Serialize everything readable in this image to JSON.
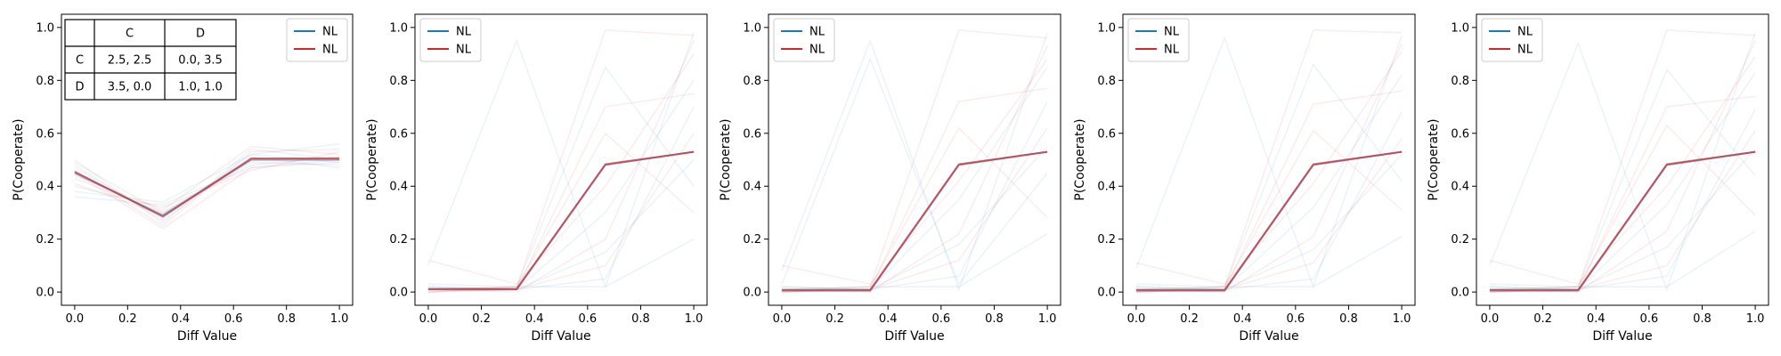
{
  "chart_data": [
    {
      "type": "line",
      "xlabel": "Diff Value",
      "ylabel": "P(Cooperate)",
      "xlim": [
        -0.05,
        1.05
      ],
      "ylim": [
        -0.05,
        1.05
      ],
      "x_ticks": [
        "0.0",
        "0.2",
        "0.4",
        "0.6",
        "0.8",
        "1.0"
      ],
      "y_ticks": [
        "0.0",
        "0.2",
        "0.4",
        "0.6",
        "0.8",
        "1.0"
      ],
      "legend": {
        "placement": "top-right",
        "entries": [
          {
            "label": "NL",
            "color": "#1f77b4"
          },
          {
            "label": "NL",
            "color": "#d62728"
          }
        ]
      },
      "payoff_table": {
        "col_headers": [
          "",
          "C",
          "D"
        ],
        "rows": [
          [
            "C",
            "2.5, 2.5",
            "0.0, 3.5"
          ],
          [
            "D",
            "3.5, 0.0",
            "1.0, 1.0"
          ]
        ]
      },
      "x": [
        0.0,
        0.333,
        0.667,
        1.0
      ],
      "series": [
        {
          "color": "#1f77b4",
          "values": [
            0.45,
            0.29,
            0.5,
            0.5
          ]
        },
        {
          "color": "#d62728",
          "values": [
            0.455,
            0.285,
            0.505,
            0.505
          ]
        }
      ],
      "background_traces": [
        [
          0.47,
          0.28,
          0.52,
          0.49
        ],
        [
          0.43,
          0.3,
          0.48,
          0.51
        ],
        [
          0.5,
          0.26,
          0.54,
          0.5
        ],
        [
          0.4,
          0.32,
          0.46,
          0.53
        ],
        [
          0.48,
          0.27,
          0.51,
          0.47
        ],
        [
          0.44,
          0.31,
          0.55,
          0.52
        ],
        [
          0.36,
          0.33,
          0.47,
          0.5
        ],
        [
          0.46,
          0.25,
          0.53,
          0.54
        ],
        [
          0.41,
          0.29,
          0.49,
          0.48
        ],
        [
          0.49,
          0.3,
          0.5,
          0.51
        ],
        [
          0.38,
          0.34,
          0.52,
          0.56
        ],
        [
          0.45,
          0.24,
          0.47,
          0.49
        ]
      ]
    },
    {
      "type": "line",
      "xlabel": "Diff Value",
      "ylabel": "P(Cooperate)",
      "xlim": [
        -0.05,
        1.05
      ],
      "ylim": [
        -0.05,
        1.05
      ],
      "x_ticks": [
        "0.0",
        "0.2",
        "0.4",
        "0.6",
        "0.8",
        "1.0"
      ],
      "y_ticks": [
        "0.0",
        "0.2",
        "0.4",
        "0.6",
        "0.8",
        "1.0"
      ],
      "legend": {
        "placement": "top-left",
        "entries": [
          {
            "label": "NL",
            "color": "#1f77b4"
          },
          {
            "label": "NL",
            "color": "#d62728"
          }
        ]
      },
      "x": [
        0.0,
        0.333,
        0.667,
        1.0
      ],
      "series": [
        {
          "color": "#1f77b4",
          "values": [
            0.01,
            0.01,
            0.48,
            0.53
          ]
        },
        {
          "color": "#d62728",
          "values": [
            0.012,
            0.012,
            0.483,
            0.53
          ]
        }
      ],
      "background_traces": [
        [
          0.1,
          0.95,
          0.02,
          0.98
        ],
        [
          0.01,
          0.02,
          0.99,
          0.97
        ],
        [
          0.02,
          0.01,
          0.3,
          0.8
        ],
        [
          0.0,
          0.01,
          0.1,
          0.6
        ],
        [
          0.03,
          0.02,
          0.85,
          0.4
        ],
        [
          0.01,
          0.0,
          0.2,
          0.95
        ],
        [
          0.02,
          0.01,
          0.05,
          0.7
        ],
        [
          0.0,
          0.02,
          0.6,
          0.3
        ],
        [
          0.01,
          0.01,
          0.15,
          0.5
        ],
        [
          0.12,
          0.03,
          0.4,
          0.9
        ],
        [
          0.01,
          0.02,
          0.02,
          0.2
        ],
        [
          0.0,
          0.01,
          0.7,
          0.75
        ]
      ]
    },
    {
      "type": "line",
      "xlabel": "Diff Value",
      "ylabel": "P(Cooperate)",
      "xlim": [
        -0.05,
        1.05
      ],
      "ylim": [
        -0.05,
        1.05
      ],
      "x_ticks": [
        "0.0",
        "0.2",
        "0.4",
        "0.6",
        "0.8",
        "1.0"
      ],
      "y_ticks": [
        "0.0",
        "0.2",
        "0.4",
        "0.6",
        "0.8",
        "1.0"
      ],
      "legend": {
        "placement": "top-left",
        "entries": [
          {
            "label": "NL",
            "color": "#1f77b4"
          },
          {
            "label": "NL",
            "color": "#d62728"
          }
        ]
      },
      "x": [
        0.0,
        0.333,
        0.667,
        1.0
      ],
      "series": [
        {
          "color": "#1f77b4",
          "values": [
            0.005,
            0.005,
            0.48,
            0.53
          ]
        },
        {
          "color": "#d62728",
          "values": [
            0.008,
            0.008,
            0.483,
            0.53
          ]
        }
      ],
      "background_traces": [
        [
          0.08,
          0.95,
          0.01,
          0.98
        ],
        [
          0.01,
          0.02,
          0.99,
          0.96
        ],
        [
          0.02,
          0.01,
          0.35,
          0.85
        ],
        [
          0.0,
          0.01,
          0.12,
          0.62
        ],
        [
          0.03,
          0.88,
          0.03,
          0.45
        ],
        [
          0.01,
          0.0,
          0.22,
          0.93
        ],
        [
          0.02,
          0.01,
          0.06,
          0.72
        ],
        [
          0.0,
          0.02,
          0.62,
          0.28
        ],
        [
          0.01,
          0.01,
          0.18,
          0.55
        ],
        [
          0.1,
          0.03,
          0.42,
          0.88
        ],
        [
          0.01,
          0.02,
          0.02,
          0.22
        ],
        [
          0.0,
          0.01,
          0.72,
          0.77
        ]
      ]
    },
    {
      "type": "line",
      "xlabel": "Diff Value",
      "ylabel": "P(Cooperate)",
      "xlim": [
        -0.05,
        1.05
      ],
      "ylim": [
        -0.05,
        1.05
      ],
      "x_ticks": [
        "0.0",
        "0.2",
        "0.4",
        "0.6",
        "0.8",
        "1.0"
      ],
      "y_ticks": [
        "0.0",
        "0.2",
        "0.4",
        "0.6",
        "0.8",
        "1.0"
      ],
      "legend": {
        "placement": "top-left",
        "entries": [
          {
            "label": "NL",
            "color": "#1f77b4"
          },
          {
            "label": "NL",
            "color": "#d62728"
          }
        ]
      },
      "x": [
        0.0,
        0.333,
        0.667,
        1.0
      ],
      "series": [
        {
          "color": "#1f77b4",
          "values": [
            0.005,
            0.005,
            0.48,
            0.53
          ]
        },
        {
          "color": "#d62728",
          "values": [
            0.008,
            0.008,
            0.483,
            0.53
          ]
        }
      ],
      "background_traces": [
        [
          0.09,
          0.96,
          0.02,
          0.97
        ],
        [
          0.01,
          0.02,
          0.99,
          0.98
        ],
        [
          0.02,
          0.01,
          0.32,
          0.82
        ],
        [
          0.0,
          0.01,
          0.11,
          0.58
        ],
        [
          0.03,
          0.02,
          0.86,
          0.42
        ],
        [
          0.01,
          0.0,
          0.21,
          0.94
        ],
        [
          0.02,
          0.01,
          0.05,
          0.68
        ],
        [
          0.0,
          0.02,
          0.61,
          0.31
        ],
        [
          0.01,
          0.01,
          0.16,
          0.52
        ],
        [
          0.11,
          0.03,
          0.41,
          0.91
        ],
        [
          0.01,
          0.02,
          0.02,
          0.21
        ],
        [
          0.0,
          0.01,
          0.71,
          0.76
        ]
      ]
    },
    {
      "type": "line",
      "xlabel": "Diff Value",
      "ylabel": "P(Cooperate)",
      "xlim": [
        -0.05,
        1.05
      ],
      "ylim": [
        -0.05,
        1.05
      ],
      "x_ticks": [
        "0.0",
        "0.2",
        "0.4",
        "0.6",
        "0.8",
        "1.0"
      ],
      "y_ticks": [
        "0.0",
        "0.2",
        "0.4",
        "0.6",
        "0.8",
        "1.0"
      ],
      "legend": {
        "placement": "top-left",
        "entries": [
          {
            "label": "NL",
            "color": "#1f77b4"
          },
          {
            "label": "NL",
            "color": "#d62728"
          }
        ]
      },
      "x": [
        0.0,
        0.333,
        0.667,
        1.0
      ],
      "series": [
        {
          "color": "#1f77b4",
          "values": [
            0.005,
            0.005,
            0.48,
            0.53
          ]
        },
        {
          "color": "#d62728",
          "values": [
            0.008,
            0.008,
            0.483,
            0.53
          ]
        }
      ],
      "background_traces": [
        [
          0.1,
          0.94,
          0.01,
          0.98
        ],
        [
          0.01,
          0.02,
          0.99,
          0.97
        ],
        [
          0.02,
          0.01,
          0.33,
          0.83
        ],
        [
          0.0,
          0.01,
          0.1,
          0.61
        ],
        [
          0.03,
          0.02,
          0.84,
          0.44
        ],
        [
          0.01,
          0.0,
          0.23,
          0.95
        ],
        [
          0.02,
          0.01,
          0.06,
          0.69
        ],
        [
          0.0,
          0.02,
          0.63,
          0.29
        ],
        [
          0.01,
          0.01,
          0.17,
          0.54
        ],
        [
          0.12,
          0.03,
          0.4,
          0.89
        ],
        [
          0.01,
          0.02,
          0.02,
          0.23
        ],
        [
          0.0,
          0.01,
          0.7,
          0.74
        ]
      ]
    }
  ]
}
